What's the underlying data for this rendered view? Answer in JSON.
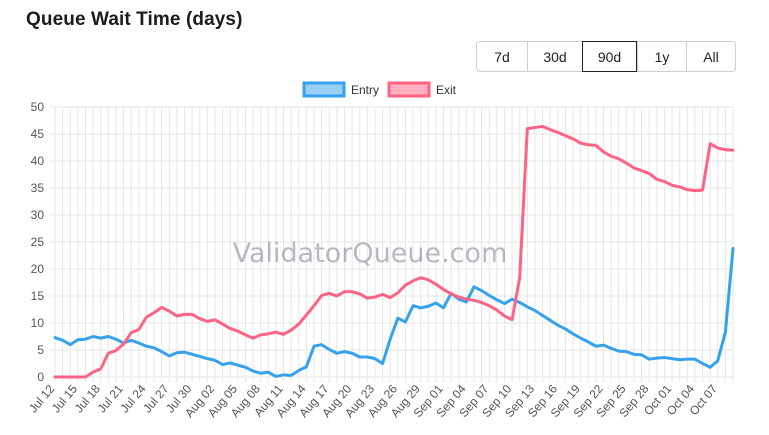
{
  "title": "Queue Wait Time (days)",
  "range_selector": {
    "options": [
      "7d",
      "30d",
      "90d",
      "1y",
      "All"
    ],
    "selected": "90d"
  },
  "watermark": "ValidatorQueue.com",
  "colors": {
    "entry": "#36a2eb",
    "entry_fill": "#9ad0f5",
    "exit": "#ff6384",
    "exit_fill": "#ffb1c1",
    "grid": "#e6e6e6"
  },
  "chart_data": {
    "type": "line",
    "title": "Queue Wait Time (days)",
    "xlabel": "",
    "ylabel": "",
    "ylim": [
      0,
      50
    ],
    "yticks": [
      0,
      5,
      10,
      15,
      20,
      25,
      30,
      35,
      40,
      45,
      50
    ],
    "grid": true,
    "legend_position": "top",
    "x_tick_labels": [
      "Jul 12",
      "Jul 15",
      "Jul 18",
      "Jul 21",
      "Jul 24",
      "Jul 27",
      "Jul 30",
      "Aug 02",
      "Aug 05",
      "Aug 08",
      "Aug 11",
      "Aug 14",
      "Aug 17",
      "Aug 20",
      "Aug 23",
      "Aug 26",
      "Aug 29",
      "Sep 01",
      "Sep 04",
      "Sep 07",
      "Sep 10",
      "Sep 13",
      "Sep 16",
      "Sep 19",
      "Sep 22",
      "Sep 25",
      "Sep 28",
      "Oct 01",
      "Oct 04",
      "Oct 07"
    ],
    "x": [
      "Jul 12",
      "Jul 13",
      "Jul 14",
      "Jul 15",
      "Jul 16",
      "Jul 17",
      "Jul 18",
      "Jul 19",
      "Jul 20",
      "Jul 21",
      "Jul 22",
      "Jul 23",
      "Jul 24",
      "Jul 25",
      "Jul 26",
      "Jul 27",
      "Jul 28",
      "Jul 29",
      "Jul 30",
      "Jul 31",
      "Aug 01",
      "Aug 02",
      "Aug 03",
      "Aug 04",
      "Aug 05",
      "Aug 06",
      "Aug 07",
      "Aug 08",
      "Aug 09",
      "Aug 10",
      "Aug 11",
      "Aug 12",
      "Aug 13",
      "Aug 14",
      "Aug 15",
      "Aug 16",
      "Aug 17",
      "Aug 18",
      "Aug 19",
      "Aug 20",
      "Aug 21",
      "Aug 22",
      "Aug 23",
      "Aug 24",
      "Aug 25",
      "Aug 26",
      "Aug 27",
      "Aug 28",
      "Aug 29",
      "Aug 30",
      "Aug 31",
      "Sep 01",
      "Sep 02",
      "Sep 03",
      "Sep 04",
      "Sep 05",
      "Sep 06",
      "Sep 07",
      "Sep 08",
      "Sep 09",
      "Sep 10",
      "Sep 11",
      "Sep 12",
      "Sep 13",
      "Sep 14",
      "Sep 15",
      "Sep 16",
      "Sep 17",
      "Sep 18",
      "Sep 19",
      "Sep 20",
      "Sep 21",
      "Sep 22",
      "Sep 23",
      "Sep 24",
      "Sep 25",
      "Sep 26",
      "Sep 27",
      "Sep 28",
      "Sep 29",
      "Sep 30",
      "Oct 01",
      "Oct 02",
      "Oct 03",
      "Oct 04",
      "Oct 05",
      "Oct 06",
      "Oct 07",
      "Oct 08",
      "Oct 09"
    ],
    "series": [
      {
        "name": "Entry",
        "values": [
          7.3,
          6.8,
          6.0,
          6.9,
          7.0,
          7.5,
          7.2,
          7.5,
          7.0,
          6.3,
          6.8,
          6.3,
          5.7,
          5.4,
          4.7,
          3.9,
          4.5,
          4.6,
          4.2,
          3.8,
          3.4,
          3.1,
          2.3,
          2.6,
          2.2,
          1.8,
          1.1,
          0.7,
          0.9,
          0.1,
          0.4,
          0.3,
          1.2,
          1.9,
          5.7,
          6.0,
          5.1,
          4.4,
          4.7,
          4.4,
          3.7,
          3.7,
          3.4,
          2.5,
          7.0,
          10.9,
          10.2,
          13.2,
          12.8,
          13.1,
          13.7,
          12.8,
          15.5,
          14.4,
          13.9,
          16.7,
          16.0,
          15.1,
          14.3,
          13.6,
          14.4,
          13.8,
          13.0,
          12.3,
          11.4,
          10.5,
          9.6,
          8.9,
          8.0,
          7.2,
          6.5,
          5.7,
          5.9,
          5.3,
          4.8,
          4.7,
          4.2,
          4.1,
          3.3,
          3.5,
          3.6,
          3.4,
          3.2,
          3.3,
          3.3,
          2.5,
          1.8,
          3.0,
          8.3,
          23.8
        ]
      },
      {
        "name": "Exit",
        "values": [
          0.0,
          0.0,
          0.0,
          0.0,
          0.0,
          0.9,
          1.5,
          4.4,
          4.9,
          6.1,
          8.2,
          8.8,
          11.1,
          11.9,
          12.9,
          12.2,
          11.3,
          11.6,
          11.6,
          10.8,
          10.3,
          10.6,
          9.8,
          9.0,
          8.5,
          7.8,
          7.2,
          7.8,
          8.0,
          8.3,
          7.9,
          8.7,
          9.8,
          11.5,
          13.2,
          15.1,
          15.5,
          15.0,
          15.8,
          15.8,
          15.4,
          14.6,
          14.8,
          15.3,
          14.7,
          15.6,
          17.0,
          17.8,
          18.4,
          18.0,
          17.2,
          16.2,
          15.4,
          14.8,
          14.4,
          14.2,
          13.8,
          13.2,
          12.4,
          11.3,
          10.6,
          18.4,
          46.0,
          46.2,
          46.4,
          45.8,
          45.3,
          44.7,
          44.1,
          43.3,
          43.0,
          42.9,
          41.7,
          40.9,
          40.4,
          39.6,
          38.7,
          38.2,
          37.7,
          36.6,
          36.2,
          35.5,
          35.2,
          34.7,
          34.5,
          34.6,
          43.2,
          42.4,
          42.1,
          42.0
        ]
      }
    ]
  }
}
